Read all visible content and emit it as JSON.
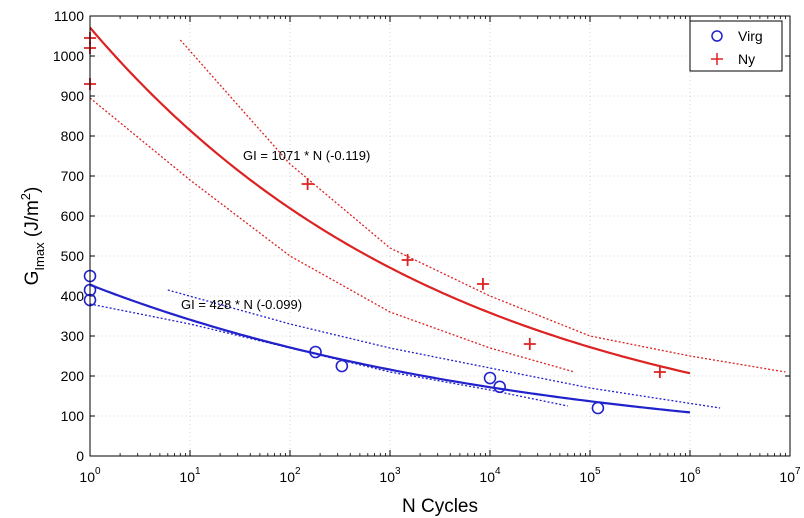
{
  "chart_data": {
    "type": "scatter",
    "xlabel": "N Cycles",
    "ylabel": {
      "main": "G",
      "sub": "Imax",
      "rest": " (J/m",
      "sup": "2",
      "end": ")"
    },
    "xscale": "log",
    "xlim": [
      1,
      10000000
    ],
    "ylim": [
      0,
      1100
    ],
    "grid": true,
    "legend_position": "top-right",
    "x_ticks": [
      {
        "base": "10",
        "exp": "0"
      },
      {
        "base": "10",
        "exp": "1"
      },
      {
        "base": "10",
        "exp": "2"
      },
      {
        "base": "10",
        "exp": "3"
      },
      {
        "base": "10",
        "exp": "4"
      },
      {
        "base": "10",
        "exp": "5"
      },
      {
        "base": "10",
        "exp": "6"
      },
      {
        "base": "10",
        "exp": "7"
      }
    ],
    "y_ticks": [
      "0",
      "100",
      "200",
      "300",
      "400",
      "500",
      "600",
      "700",
      "800",
      "900",
      "1000",
      "1100"
    ],
    "series": [
      {
        "name": "Virg",
        "color": "#2222cc",
        "marker": "circle",
        "points": [
          [
            1,
            450
          ],
          [
            1,
            415
          ],
          [
            1,
            390
          ],
          [
            180,
            260
          ],
          [
            330,
            225
          ],
          [
            10000,
            195
          ],
          [
            12500,
            173
          ],
          [
            120000,
            120
          ]
        ],
        "fit": {
          "a": 428,
          "b": -0.099,
          "xmax": 1000000
        },
        "bound_lower": [
          [
            1,
            380
          ],
          [
            10,
            330
          ],
          [
            100,
            270
          ],
          [
            1000,
            210
          ],
          [
            10000,
            165
          ],
          [
            60000,
            125
          ]
        ],
        "bound_upper": [
          [
            6,
            415
          ],
          [
            100,
            330
          ],
          [
            1000,
            270
          ],
          [
            10000,
            220
          ],
          [
            100000,
            170
          ],
          [
            2000000,
            120
          ]
        ]
      },
      {
        "name": "Ny",
        "color": "#dd2222",
        "marker": "plus",
        "points": [
          [
            1,
            1045
          ],
          [
            1,
            1020
          ],
          [
            1,
            930
          ],
          [
            150,
            680
          ],
          [
            1500,
            490
          ],
          [
            8500,
            430
          ],
          [
            25000,
            280
          ],
          [
            500000,
            210
          ]
        ],
        "fit": {
          "a": 1071,
          "b": -0.119,
          "xmax": 1000000
        },
        "bound_lower": [
          [
            1,
            895
          ],
          [
            10,
            690
          ],
          [
            100,
            500
          ],
          [
            1000,
            360
          ],
          [
            10000,
            270
          ],
          [
            70000,
            210
          ]
        ],
        "bound_upper": [
          [
            8,
            1040
          ],
          [
            100,
            730
          ],
          [
            1000,
            520
          ],
          [
            10000,
            400
          ],
          [
            100000,
            300
          ],
          [
            1000000,
            250
          ],
          [
            9000000,
            210
          ]
        ]
      }
    ],
    "annotations": [
      {
        "id": "ny",
        "text": "GI = 1071 * N  (-0.119)"
      },
      {
        "id": "virg",
        "text": "GI = 428 * N  (-0.099)"
      }
    ]
  }
}
